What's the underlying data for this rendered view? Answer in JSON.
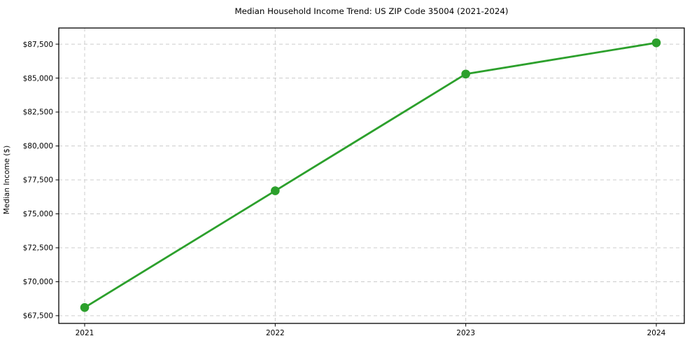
{
  "figure": {
    "background": "#ffffff",
    "text_color": "#000000"
  },
  "chart_data": {
    "type": "line",
    "title": "Median Household Income Trend: US ZIP Code 35004 (2021-2024)",
    "xlabel": "",
    "ylabel": "Median Income ($)",
    "categories": [
      "2021",
      "2022",
      "2023",
      "2024"
    ],
    "series": [
      {
        "name": "Median Household Income",
        "values": [
          68100,
          76700,
          85300,
          87600
        ],
        "color": "#2ca02c",
        "marker": "circle",
        "marker_color": "#2ca02c"
      }
    ],
    "yticks": [
      {
        "value": 67500,
        "label": "$67,500"
      },
      {
        "value": 70000,
        "label": "$70,000"
      },
      {
        "value": 72500,
        "label": "$72,500"
      },
      {
        "value": 75000,
        "label": "$75,000"
      },
      {
        "value": 77500,
        "label": "$77,500"
      },
      {
        "value": 80000,
        "label": "$80,000"
      },
      {
        "value": 82500,
        "label": "$82,500"
      },
      {
        "value": 85000,
        "label": "$85,000"
      },
      {
        "value": 87500,
        "label": "$87,500"
      }
    ],
    "ylim": [
      66930,
      88690
    ],
    "grid": true,
    "grid_style": "dashed",
    "grid_color": "#cccccc",
    "spine_color": "#000000",
    "legend_position": "none"
  }
}
